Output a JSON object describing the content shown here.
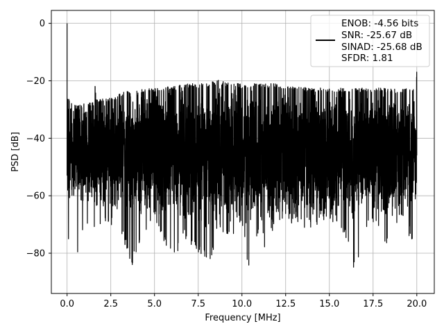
{
  "chart_data": {
    "type": "line",
    "title": "",
    "xlabel": "Frequency [MHz]",
    "ylabel": "PSD [dB]",
    "xlim": [
      -0.9,
      21.0
    ],
    "ylim": [
      -94.0,
      4.5
    ],
    "grid": true,
    "legend_position": "top-right",
    "line_color": "#000000",
    "x_ticks": [
      0.0,
      2.5,
      5.0,
      7.5,
      10.0,
      12.5,
      15.0,
      17.5,
      20.0
    ],
    "x_tick_labels": [
      "0.0",
      "2.5",
      "5.0",
      "7.5",
      "10.0",
      "12.5",
      "15.0",
      "17.5",
      "20.0"
    ],
    "y_ticks": [
      0,
      -20,
      -40,
      -60,
      -80
    ],
    "y_tick_labels": [
      "0",
      "−20",
      "−40",
      "−60",
      "−80"
    ],
    "legend": {
      "entries": [
        "ENOB: -4.56 bits",
        "SNR: -25.67 dB",
        "SINAD: -25.68 dB",
        "SFDR: 1.81"
      ]
    },
    "series": [
      {
        "x_range": [
          0.0,
          20.0
        ],
        "upper_envelope": [
          [
            0.0,
            0.0
          ],
          [
            0.02,
            -22.0
          ],
          [
            0.1,
            -26.0
          ],
          [
            0.5,
            -28.5
          ],
          [
            1.0,
            -28.0
          ],
          [
            1.5,
            -27.5
          ],
          [
            1.6,
            -21.0
          ],
          [
            1.7,
            -26.5
          ],
          [
            2.5,
            -26.0
          ],
          [
            3.0,
            -24.5
          ],
          [
            3.5,
            -23.0
          ],
          [
            4.0,
            -23.0
          ],
          [
            5.0,
            -22.5
          ],
          [
            6.0,
            -22.0
          ],
          [
            7.0,
            -21.0
          ],
          [
            8.0,
            -21.0
          ],
          [
            8.7,
            -19.5
          ],
          [
            9.0,
            -20.5
          ],
          [
            10.0,
            -21.0
          ],
          [
            11.0,
            -21.0
          ],
          [
            12.0,
            -21.0
          ],
          [
            13.0,
            -22.0
          ],
          [
            14.0,
            -22.5
          ],
          [
            15.0,
            -22.5
          ],
          [
            16.0,
            -22.5
          ],
          [
            17.0,
            -22.5
          ],
          [
            18.0,
            -22.5
          ],
          [
            19.0,
            -23.0
          ],
          [
            19.9,
            -22.0
          ],
          [
            20.0,
            -16.5
          ]
        ],
        "lower_envelope": [
          [
            0.0,
            -53.0
          ],
          [
            0.02,
            -77.0
          ],
          [
            0.5,
            -83.0
          ],
          [
            1.0,
            -72.0
          ],
          [
            2.0,
            -70.0
          ],
          [
            3.0,
            -72.0
          ],
          [
            3.7,
            -85.0
          ],
          [
            4.2,
            -78.0
          ],
          [
            5.0,
            -68.0
          ],
          [
            6.1,
            -84.0
          ],
          [
            6.7,
            -75.0
          ],
          [
            8.2,
            -85.0
          ],
          [
            8.6,
            -72.0
          ],
          [
            9.3,
            -76.0
          ],
          [
            10.0,
            -68.0
          ],
          [
            10.3,
            -86.0
          ],
          [
            10.5,
            -83.0
          ],
          [
            11.0,
            -72.0
          ],
          [
            11.4,
            -80.0
          ],
          [
            12.0,
            -68.0
          ],
          [
            13.0,
            -70.0
          ],
          [
            14.0,
            -72.0
          ],
          [
            15.0,
            -68.0
          ],
          [
            15.9,
            -74.0
          ],
          [
            16.5,
            -89.0
          ],
          [
            17.0,
            -72.0
          ],
          [
            18.0,
            -72.0
          ],
          [
            18.2,
            -79.0
          ],
          [
            19.0,
            -68.0
          ],
          [
            19.8,
            -77.0
          ],
          [
            20.0,
            -55.0
          ]
        ],
        "typical_floor": -45.0
      }
    ]
  }
}
